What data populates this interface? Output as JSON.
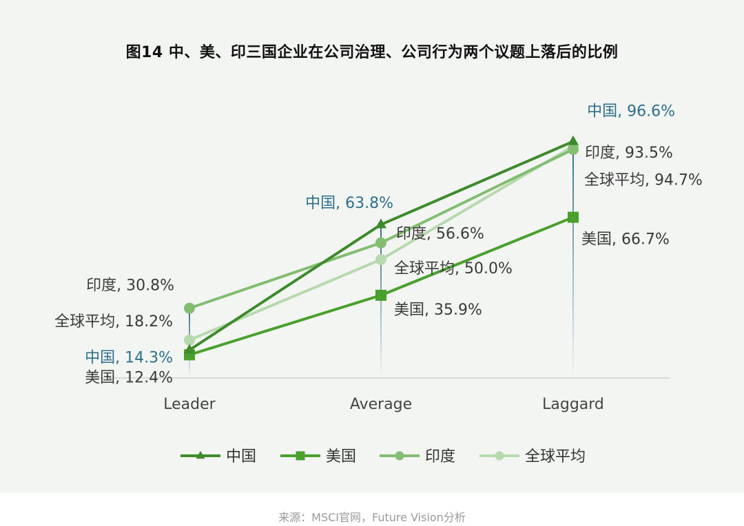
{
  "chart_data": {
    "type": "line",
    "title": "图14  中、美、印三国企业在公司治理、公司行为两个议题上落后的比例",
    "categories": [
      "Leader",
      "Average",
      "Laggard"
    ],
    "ylim": [
      0,
      100
    ],
    "grid": false,
    "legend": "bottom",
    "series": [
      {
        "name": "中国",
        "values": [
          14.3,
          63.8,
          96.6
        ],
        "color": "#3e8a2c",
        "marker": "triangle",
        "labels": [
          "中国, 14.3%",
          "中国, 63.8%",
          "中国, 96.6%"
        ],
        "label_color": "#2c6f8a"
      },
      {
        "name": "美国",
        "values": [
          12.4,
          35.9,
          66.7
        ],
        "color": "#4aa02c",
        "marker": "square",
        "labels": [
          "美国, 12.4%",
          "美国, 35.9%",
          "美国, 66.7%"
        ],
        "label_color": "#3a3a3a"
      },
      {
        "name": "印度",
        "values": [
          30.8,
          56.6,
          93.5
        ],
        "color": "#82bd72",
        "marker": "circle",
        "labels": [
          "印度, 30.8%",
          "印度, 56.6%",
          "印度, 93.5%"
        ],
        "label_color": "#3a3a3a"
      },
      {
        "name": "全球平均",
        "values": [
          18.2,
          50.0,
          94.7
        ],
        "color": "#b7d9ae",
        "marker": "circle",
        "labels": [
          "全球平均, 18.2%",
          "全球平均, 50.0%",
          "全球平均, 94.7%"
        ],
        "label_color": "#3a3a3a"
      }
    ]
  },
  "footer": {
    "source": "来源：MSCI官网，Future Vision分析"
  }
}
